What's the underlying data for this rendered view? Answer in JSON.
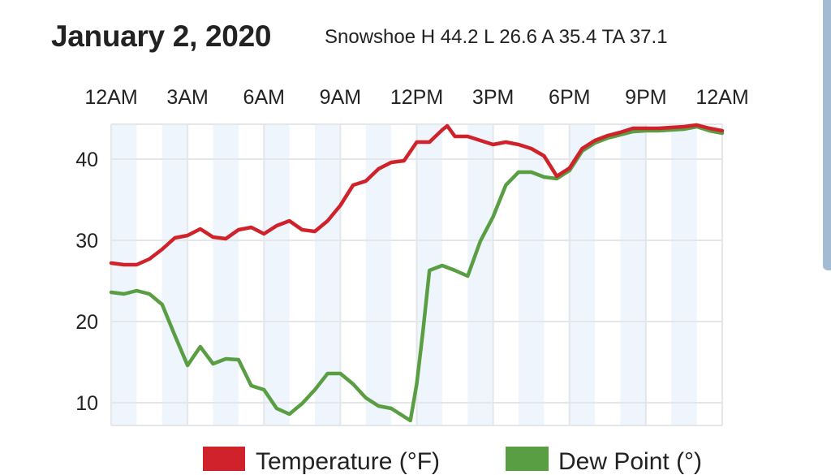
{
  "header": {
    "title": "January 2, 2020",
    "subtitle": "Snowshoe H 44.2 L 26.6 A 35.4 TA 37.1"
  },
  "colors": {
    "temperature": "#d0222b",
    "dew_point": "#5a9e44",
    "stripe": "#eef5fc",
    "grid": "#e4e6e9"
  },
  "chart_data": {
    "type": "line",
    "title": "January 2, 2020",
    "x_unit": "hours since midnight",
    "xlim": [
      0,
      24
    ],
    "ylim": [
      7.2,
      44.3
    ],
    "grid": true,
    "legend_position": "bottom",
    "x_ticks": [
      {
        "value": 0,
        "label": "12AM"
      },
      {
        "value": 3,
        "label": "3AM"
      },
      {
        "value": 6,
        "label": "6AM"
      },
      {
        "value": 9,
        "label": "9AM"
      },
      {
        "value": 12,
        "label": "12PM"
      },
      {
        "value": 15,
        "label": "3PM"
      },
      {
        "value": 18,
        "label": "6PM"
      },
      {
        "value": 21,
        "label": "9PM"
      },
      {
        "value": 24,
        "label": "12AM"
      }
    ],
    "y_ticks": [
      {
        "value": 40,
        "label": "40"
      },
      {
        "value": 30,
        "label": "30"
      },
      {
        "value": 20,
        "label": "20"
      },
      {
        "value": 10,
        "label": "10"
      }
    ],
    "shaded_hours": [
      0,
      2,
      4,
      6,
      8,
      10,
      12,
      14,
      16,
      18,
      20,
      22
    ],
    "series": [
      {
        "name": "Temperature (°F)",
        "color": "#d0222b",
        "x": [
          0,
          0.5,
          1,
          1.5,
          2,
          2.5,
          3,
          3.5,
          4,
          4.5,
          5,
          5.5,
          6,
          6.5,
          7,
          7.5,
          8,
          8.5,
          9,
          9.5,
          10,
          10.5,
          11,
          11.5,
          12,
          12.5,
          13,
          13.2,
          13.5,
          14,
          14.5,
          15,
          15.5,
          16,
          16.5,
          17,
          17.5,
          18,
          18.5,
          19,
          19.5,
          20,
          20.5,
          21,
          21.5,
          22,
          22.5,
          23,
          23.5,
          24
        ],
        "values": [
          27.2,
          27.0,
          27.0,
          27.7,
          28.9,
          30.3,
          30.6,
          31.4,
          30.4,
          30.2,
          31.3,
          31.6,
          30.8,
          31.8,
          32.4,
          31.3,
          31.1,
          32.4,
          34.3,
          36.8,
          37.3,
          38.8,
          39.6,
          39.8,
          42.1,
          42.1,
          43.6,
          44.1,
          42.8,
          42.8,
          42.3,
          41.8,
          42.1,
          41.8,
          41.3,
          40.4,
          37.9,
          38.9,
          41.3,
          42.3,
          42.9,
          43.3,
          43.8,
          43.8,
          43.8,
          43.9,
          44.0,
          44.2,
          43.8,
          43.5
        ]
      },
      {
        "name": "Dew Point (°)",
        "color": "#5a9e44",
        "x": [
          0,
          0.5,
          1,
          1.5,
          2,
          2.5,
          3,
          3.5,
          4,
          4.5,
          5,
          5.5,
          6,
          6.5,
          7,
          7.5,
          8,
          8.5,
          9,
          9.5,
          10,
          10.5,
          11,
          11.5,
          11.75,
          12,
          12.25,
          12.5,
          13,
          13.5,
          14,
          14.5,
          15,
          15.5,
          16,
          16.5,
          17,
          17.5,
          18,
          18.5,
          19,
          19.5,
          20,
          20.5,
          21,
          21.5,
          22,
          22.5,
          23,
          23.5,
          24
        ],
        "values": [
          23.6,
          23.4,
          23.8,
          23.4,
          22.1,
          18.3,
          14.6,
          16.9,
          14.8,
          15.4,
          15.3,
          12.1,
          11.6,
          9.3,
          8.6,
          9.9,
          11.6,
          13.6,
          13.6,
          12.3,
          10.6,
          9.6,
          9.3,
          8.3,
          7.8,
          12.3,
          18.9,
          26.3,
          26.9,
          26.3,
          25.6,
          29.9,
          32.9,
          36.8,
          38.4,
          38.4,
          37.8,
          37.6,
          38.6,
          41.0,
          42.0,
          42.6,
          43.0,
          43.4,
          43.5,
          43.5,
          43.6,
          43.7,
          44.0,
          43.5,
          43.2
        ]
      }
    ]
  }
}
